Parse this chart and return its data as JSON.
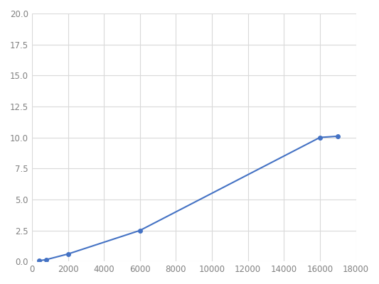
{
  "x": [
    400,
    800,
    2000,
    6000,
    16000,
    17000
  ],
  "y": [
    0.06,
    0.15,
    0.6,
    2.5,
    10.0,
    10.1
  ],
  "line_color": "#4472C4",
  "marker_color": "#4472C4",
  "marker_size": 4,
  "line_width": 1.5,
  "xlim": [
    0,
    18000
  ],
  "ylim": [
    0,
    20
  ],
  "xticks": [
    0,
    2000,
    4000,
    6000,
    8000,
    10000,
    12000,
    14000,
    16000,
    18000
  ],
  "yticks": [
    0.0,
    2.5,
    5.0,
    7.5,
    10.0,
    12.5,
    15.0,
    17.5,
    20.0
  ],
  "grid_color": "#d9d9d9",
  "background_color": "#ffffff",
  "figure_background": "#ffffff",
  "tick_label_color": "#808080",
  "tick_label_size": 8.5
}
